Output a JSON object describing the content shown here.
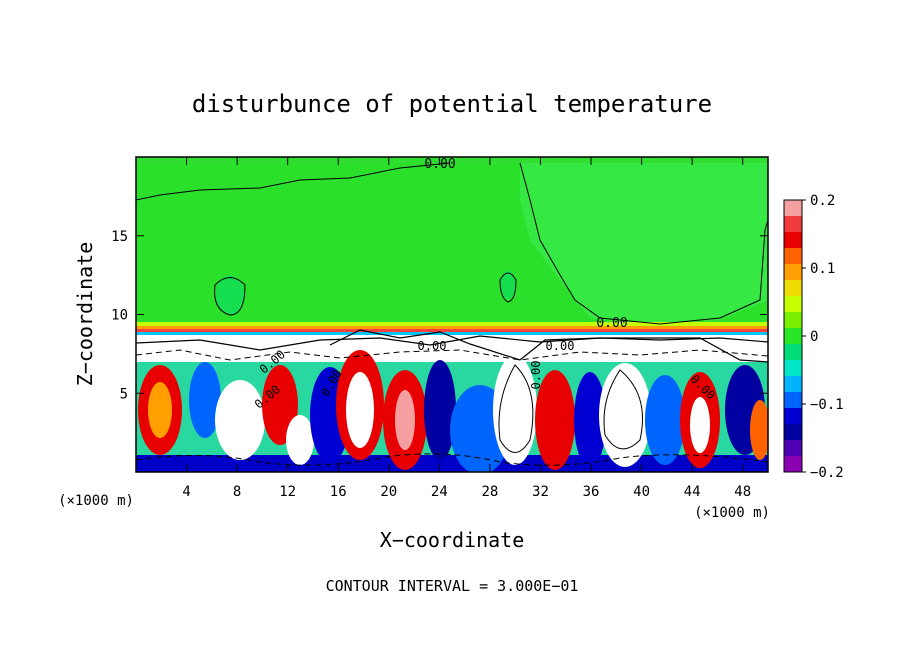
{
  "chart_data": {
    "type": "heatmap",
    "title": "disturbunce of potential temperature",
    "xlabel": "X−coordinate",
    "ylabel": "Z−coordinate",
    "x_unit_left": "(×1000 m)",
    "x_unit_right": "(×1000 m)",
    "xlim": [
      0,
      50
    ],
    "ylim": [
      0,
      20
    ],
    "x_ticks": [
      "4",
      "8",
      "12",
      "16",
      "20",
      "24",
      "28",
      "32",
      "36",
      "40",
      "44",
      "48"
    ],
    "x_tick_values": [
      4,
      8,
      12,
      16,
      20,
      24,
      28,
      32,
      36,
      40,
      44,
      48
    ],
    "y_ticks": [
      "5",
      "10",
      "15"
    ],
    "y_tick_values": [
      5,
      10,
      15
    ],
    "contour_labels": [
      "0.00",
      "0.00",
      "0.00",
      "0.00",
      "0.00",
      "0.00",
      "0.00",
      "0.00",
      "0.00"
    ],
    "footer": "CONTOUR INTERVAL = 3.000E−01",
    "colorbar": {
      "range": [
        -0.2,
        0.2
      ],
      "tick_labels": [
        "0.2",
        "0.1",
        "0",
        "−0.1",
        "−0.2"
      ],
      "tick_values": [
        0.2,
        0.1,
        0,
        -0.1,
        -0.2
      ],
      "colors": [
        "#f5a0a0",
        "#f03c3c",
        "#e80000",
        "#ff6400",
        "#ffa000",
        "#f0dc00",
        "#c8ff00",
        "#78f000",
        "#28e628",
        "#00dc78",
        "#00e6c8",
        "#00b4ff",
        "#0064ff",
        "#0000d2",
        "#0000a0",
        "#5000b4",
        "#8c00b4"
      ]
    }
  }
}
